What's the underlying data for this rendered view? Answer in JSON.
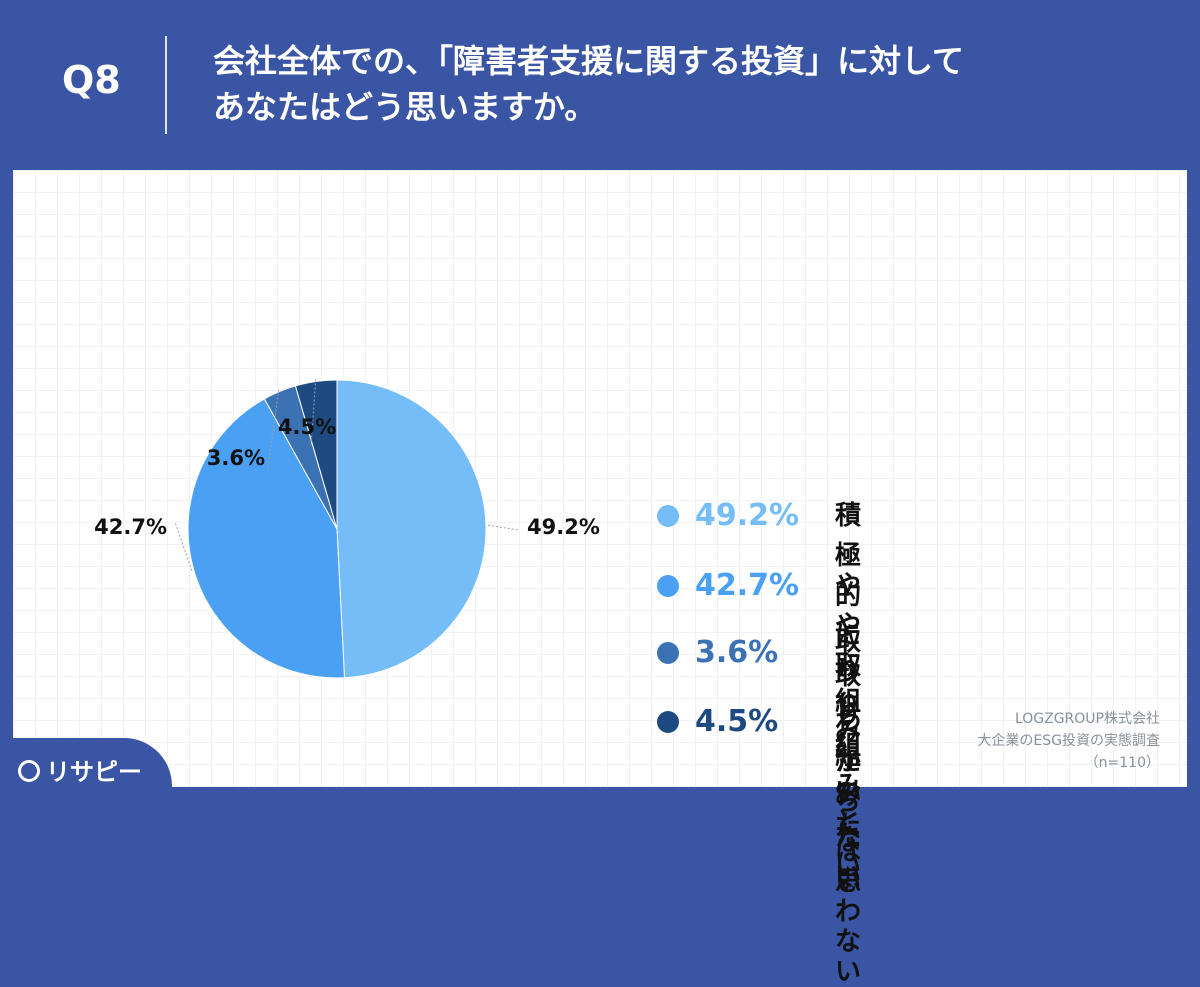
{
  "header": {
    "qnum": "Q8",
    "question_line1": "会社全体での、「障害者支援に関する投資」に対して",
    "question_line2": "あなたはどう思いますか。"
  },
  "chart_data": {
    "type": "pie",
    "categories": [
      "積極的に取り組みたい",
      "やや取り組みたい",
      "取り組みたいとは思わない",
      "わからない"
    ],
    "values": [
      49.2,
      42.7,
      3.6,
      4.5
    ],
    "data_labels": [
      "49.2%",
      "42.7%",
      "3.6%",
      "4.5%"
    ],
    "colors": [
      "#74bdf7",
      "#4aa0f3",
      "#3b72b4",
      "#1e4a82"
    ],
    "legend_position": "right"
  },
  "legend": {
    "items": [
      {
        "pct": "49.2%",
        "label": "積極的に取り組みたい",
        "color": "#74bdf7"
      },
      {
        "pct": "42.7%",
        "label": "やや取り組みたい",
        "color": "#4aa0f3"
      },
      {
        "pct": "3.6%",
        "label_line1": "取り組みたいとは",
        "label_line2": "思わない",
        "color": "#3b72b4"
      },
      {
        "pct": "4.5%",
        "label": "わからない",
        "color": "#1e4a82"
      }
    ]
  },
  "source": {
    "company": "LOGZGROUP株式会社",
    "survey": "大企業のESG投資の実態調査",
    "n": "（n=110）"
  },
  "logo": {
    "text": "リサピー"
  }
}
